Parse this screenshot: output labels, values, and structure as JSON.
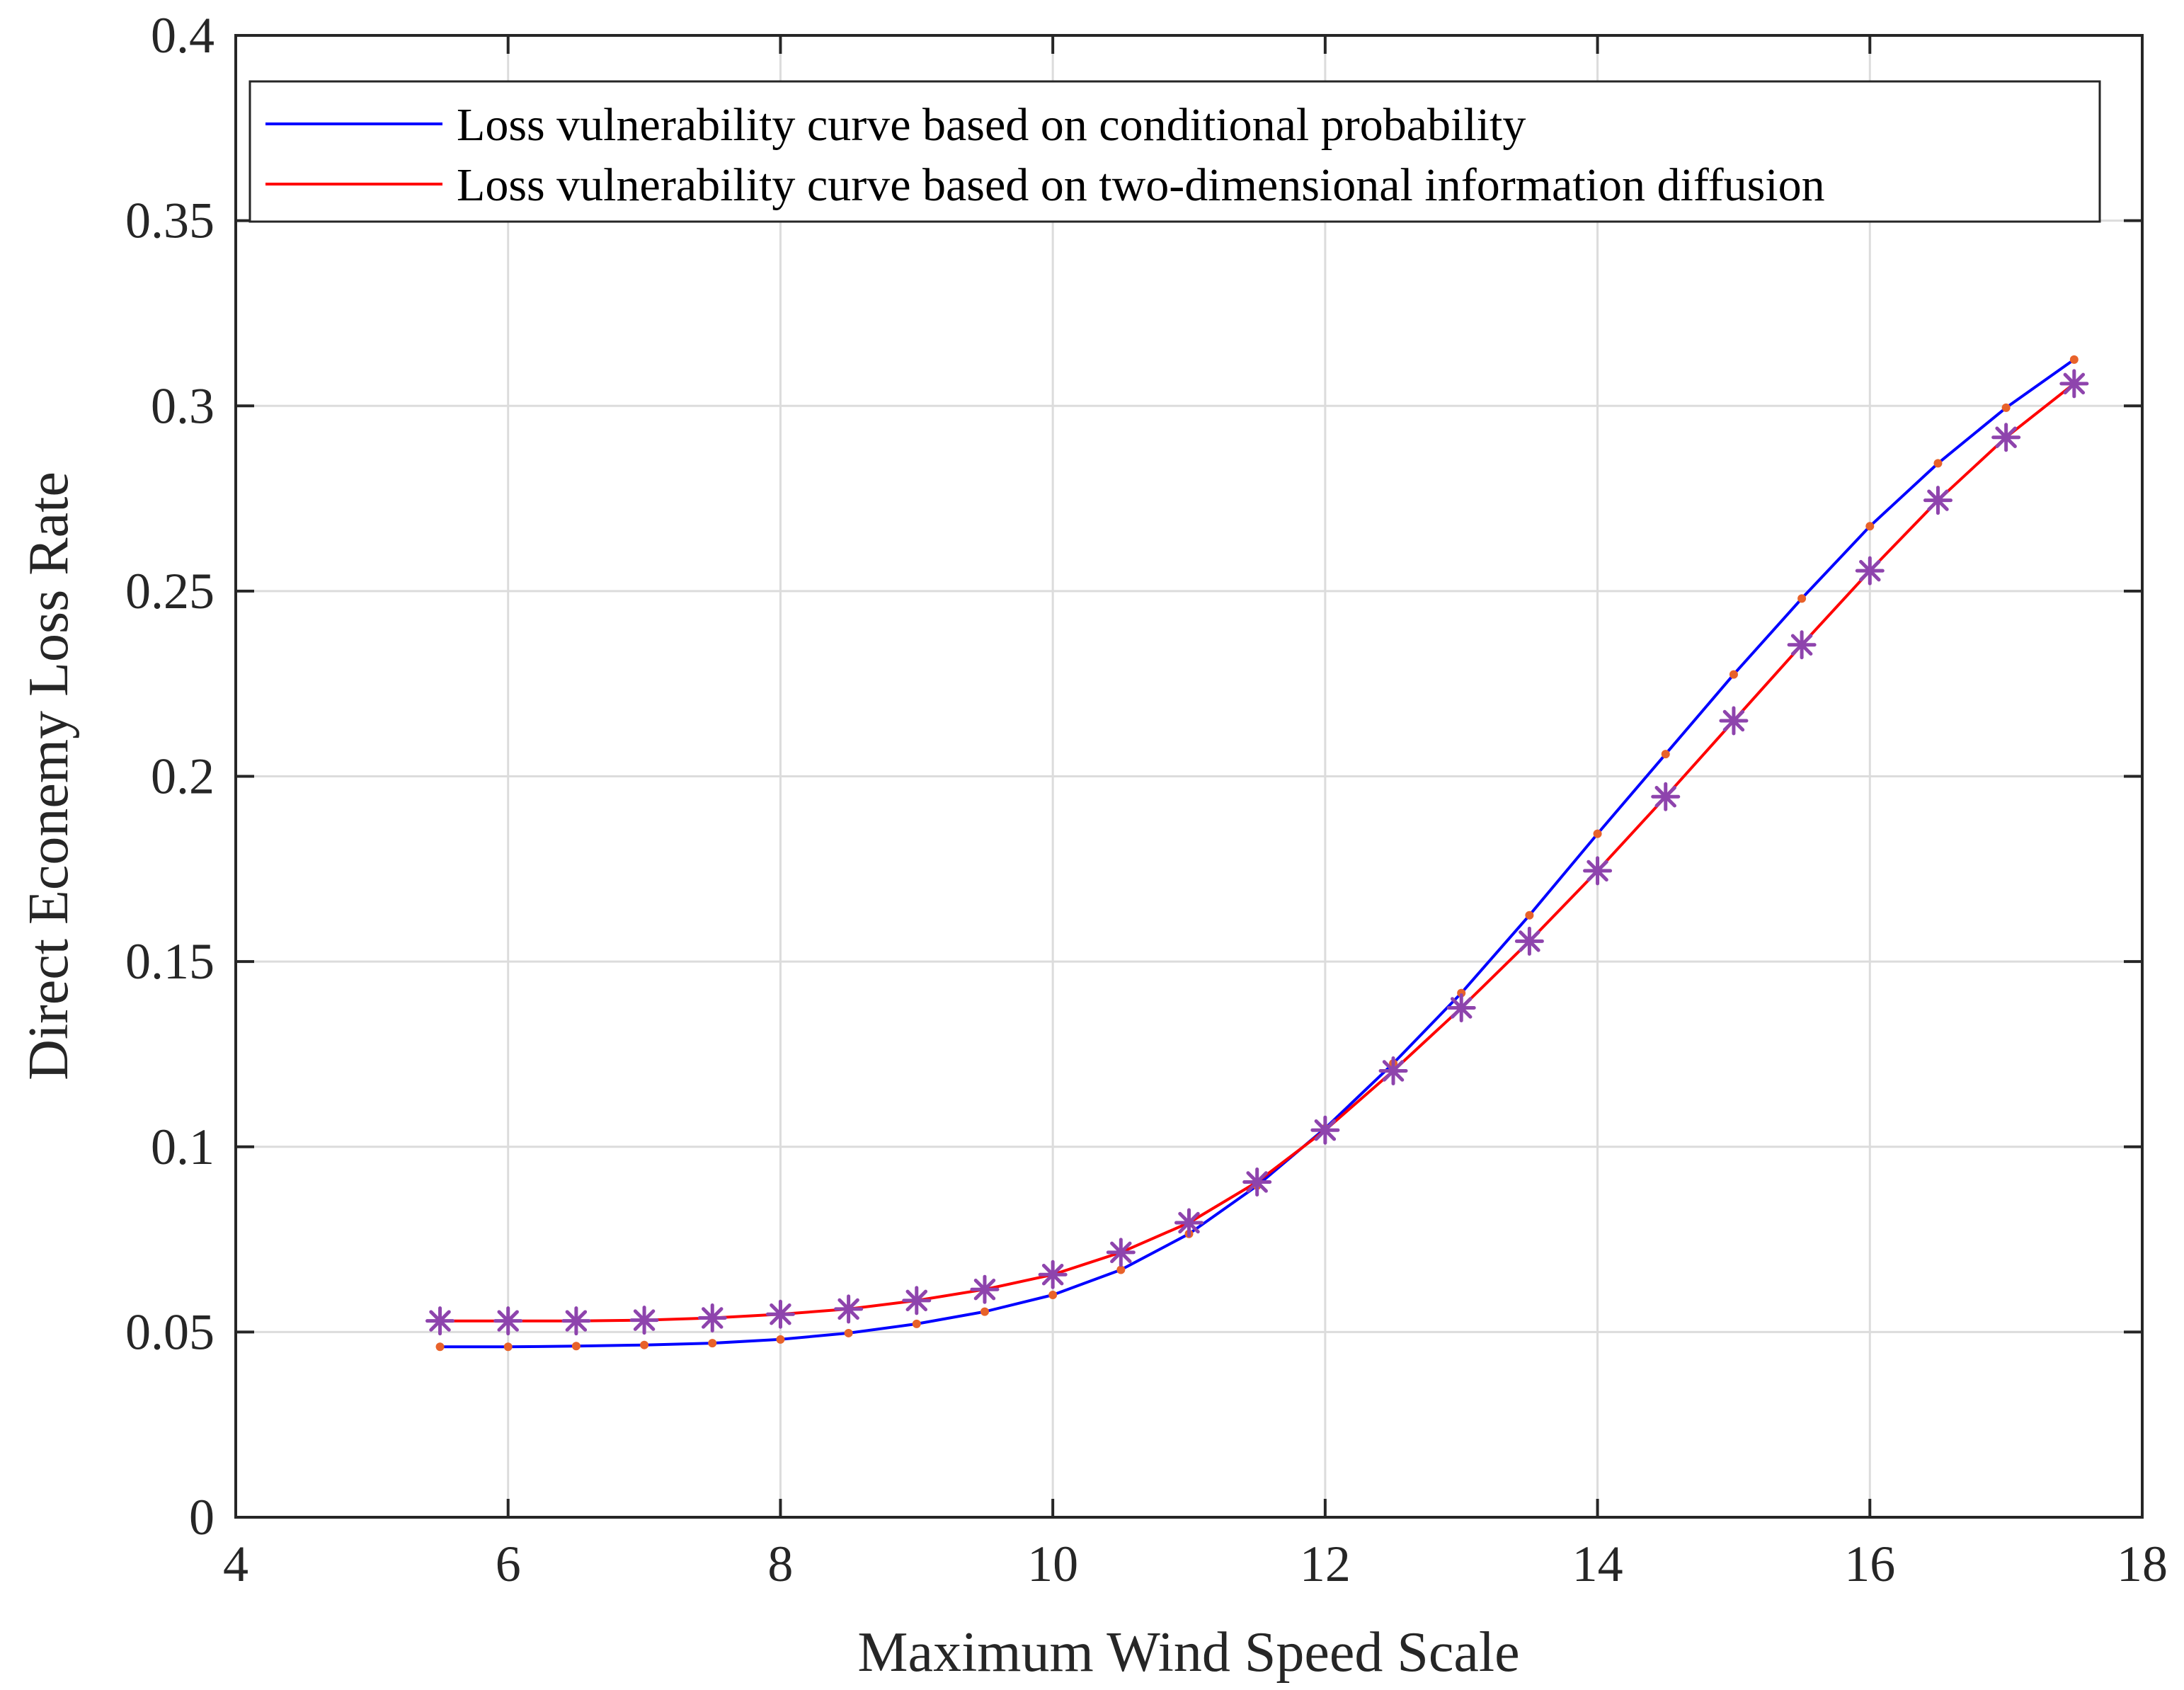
{
  "chart_data": {
    "type": "line",
    "title": "",
    "xlabel": "Maximum Wind Speed Scale",
    "ylabel": "Direct Econemy Loss Rate",
    "xlim": [
      4,
      18
    ],
    "ylim": [
      0,
      0.4
    ],
    "xticks": [
      4,
      6,
      8,
      10,
      12,
      14,
      16,
      18
    ],
    "xtick_labels": [
      "4",
      "6",
      "8",
      "10",
      "12",
      "14",
      "16",
      "18"
    ],
    "yticks": [
      0,
      0.05,
      0.1,
      0.15,
      0.2,
      0.25,
      0.3,
      0.35,
      0.4
    ],
    "ytick_labels": [
      "0",
      "0.05",
      "0.1",
      "0.15",
      "0.2",
      "0.25",
      "0.3",
      "0.35",
      "0.4"
    ],
    "grid": true,
    "legend_position": "top",
    "x": [
      5.5,
      6,
      6.5,
      7,
      7.5,
      8,
      8.5,
      9,
      9.5,
      10,
      10.5,
      11,
      11.5,
      12,
      12.5,
      13,
      13.5,
      14,
      14.5,
      15,
      15.5,
      16,
      16.5,
      17,
      17.5
    ],
    "series": [
      {
        "name": "Loss vulnerability curve based on conditional probability",
        "color": "#0000ff",
        "marker": "dot",
        "marker_color": "#e8622a",
        "values": [
          0.046,
          0.046,
          0.0462,
          0.0465,
          0.047,
          0.048,
          0.0497,
          0.0522,
          0.0555,
          0.06,
          0.0668,
          0.0765,
          0.0895,
          0.105,
          0.1225,
          0.1415,
          0.1625,
          0.1845,
          0.206,
          0.2275,
          0.248,
          0.2675,
          0.2845,
          0.2995,
          0.3125
        ]
      },
      {
        "name": "Loss vulnerability curve based on two-dimensional information diffusion",
        "color": "#ff0000",
        "marker": "asterisk",
        "marker_color": "#8e44ad",
        "values": [
          0.053,
          0.053,
          0.053,
          0.0532,
          0.0538,
          0.0548,
          0.0562,
          0.0585,
          0.0615,
          0.0655,
          0.0715,
          0.0795,
          0.0905,
          0.1045,
          0.1205,
          0.1375,
          0.1555,
          0.1745,
          0.1945,
          0.215,
          0.2355,
          0.2555,
          0.2745,
          0.2915,
          0.306
        ]
      }
    ]
  }
}
